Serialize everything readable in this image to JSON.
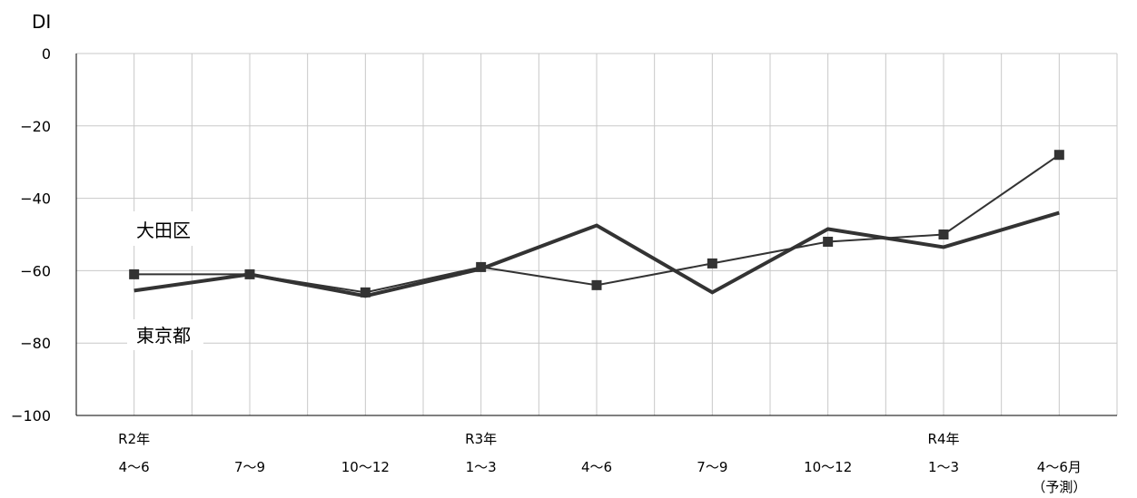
{
  "chart_data": {
    "type": "line",
    "ylabel": "DI",
    "ylim": [
      -100,
      0
    ],
    "yticks": [
      0,
      -20,
      -40,
      -60,
      -80,
      -100
    ],
    "categories": [
      [
        "R2年",
        "4〜6"
      ],
      [
        "7〜9"
      ],
      [
        "10〜12"
      ],
      [
        "R3年",
        "1〜3"
      ],
      [
        "4〜6"
      ],
      [
        "7〜9"
      ],
      [
        "10〜12"
      ],
      [
        "R4年",
        "1〜3"
      ],
      [
        "4〜6月",
        "（予測）"
      ]
    ],
    "series": [
      {
        "name": "大田区",
        "values": [
          -61,
          -61,
          -66,
          -59,
          -64,
          -58,
          -52,
          -50,
          -28
        ]
      },
      {
        "name": "東京都",
        "values": [
          -65.5,
          -61,
          -67,
          -59.5,
          -47.5,
          -66,
          -48.5,
          -53.5,
          -44
        ]
      }
    ],
    "grid": true,
    "colors": {
      "line": "#333333",
      "grid": "#c8c8c8",
      "axis": "#000000"
    }
  }
}
